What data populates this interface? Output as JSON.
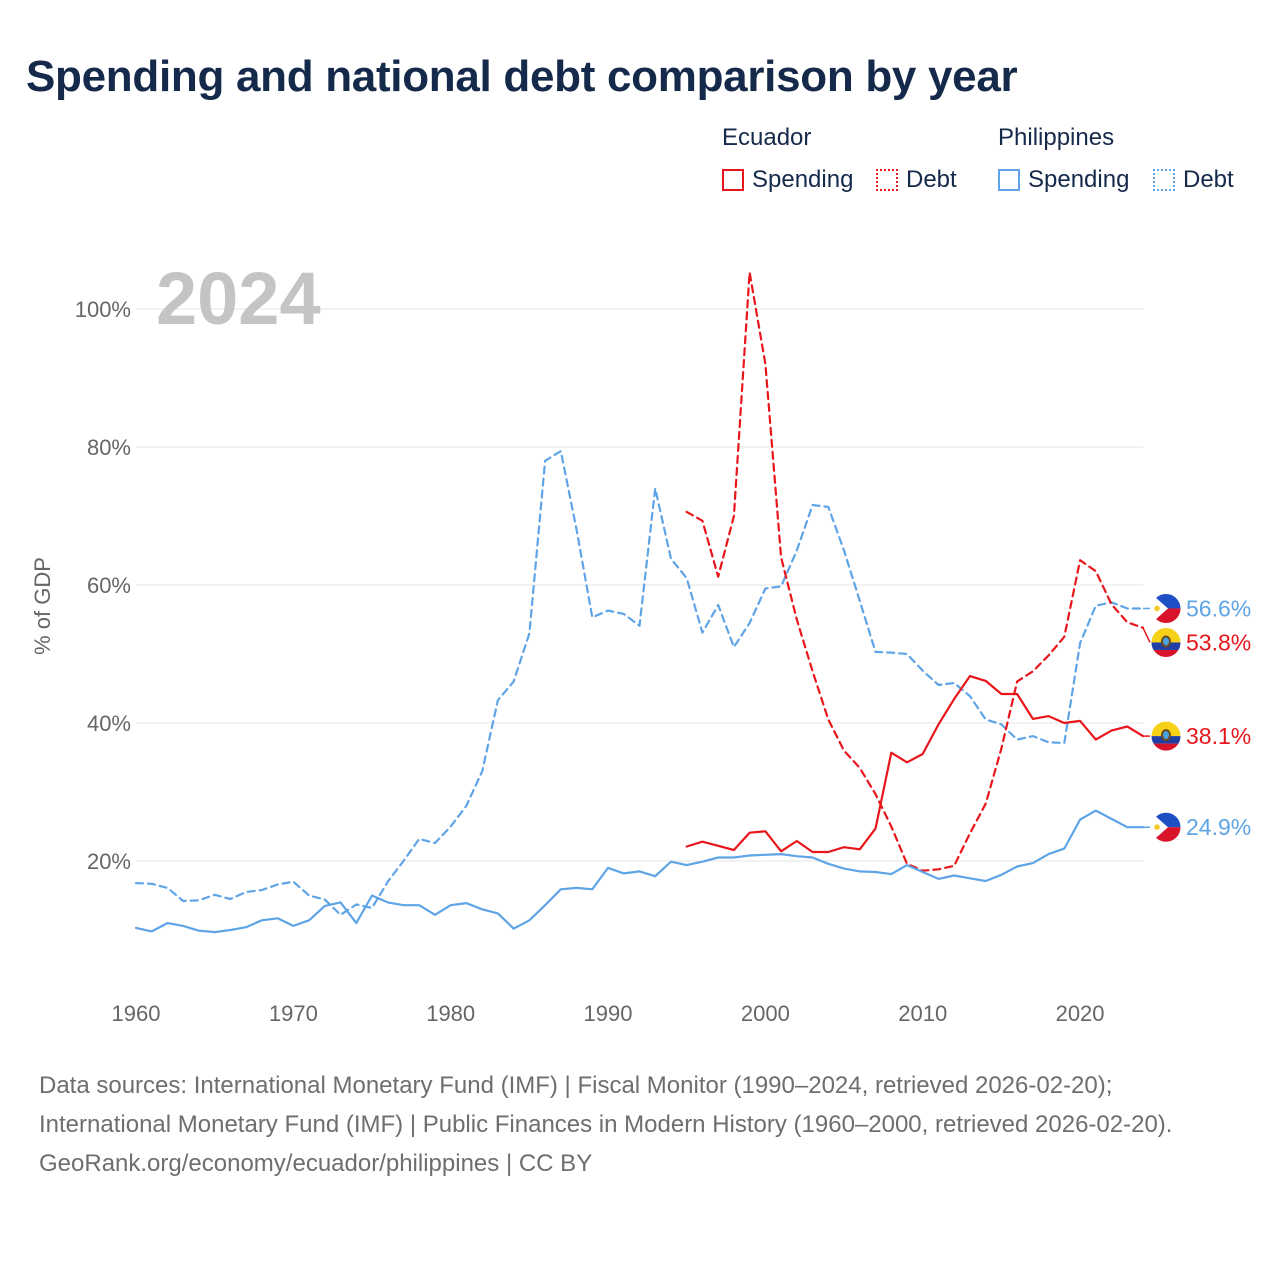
{
  "title": "Spending and national debt comparison by year",
  "legend": {
    "groups": [
      {
        "name": "Ecuador",
        "color": "#e8161b",
        "items": [
          {
            "label": "Spending",
            "style": "solid"
          },
          {
            "label": "Debt",
            "style": "dotted"
          }
        ]
      },
      {
        "name": "Philippines",
        "color": "#5ea4e6",
        "items": [
          {
            "label": "Spending",
            "style": "solid"
          },
          {
            "label": "Debt",
            "style": "dotted"
          }
        ]
      }
    ]
  },
  "chart_data": {
    "type": "line",
    "year_label": "2024",
    "ylabel": "% of GDP",
    "xlim": [
      1960,
      2025
    ],
    "ylim": [
      3,
      112
    ],
    "x_ticks": [
      1960,
      1970,
      1980,
      1990,
      2000,
      2010,
      2020
    ],
    "y_ticks": [
      {
        "value": 20,
        "label": "20%"
      },
      {
        "value": 40,
        "label": "40%"
      },
      {
        "value": 60,
        "label": "60%"
      },
      {
        "value": 80,
        "label": "80%"
      },
      {
        "value": 100,
        "label": "100%"
      }
    ],
    "series": [
      {
        "name": "Philippines Debt",
        "country": "Philippines",
        "metric": "Debt",
        "color": "#5ea4e6",
        "dash": "dashed",
        "end_label": "56.6%",
        "flag": "philippines",
        "x": [
          1960,
          1961,
          1962,
          1963,
          1964,
          1965,
          1966,
          1967,
          1968,
          1969,
          1970,
          1971,
          1972,
          1973,
          1974,
          1975,
          1976,
          1977,
          1978,
          1979,
          1980,
          1981,
          1982,
          1983,
          1984,
          1985,
          1986,
          1987,
          1988,
          1989,
          1990,
          1991,
          1992,
          1993,
          1994,
          1995,
          1996,
          1997,
          1998,
          1999,
          2000,
          2001,
          2002,
          2003,
          2004,
          2005,
          2006,
          2007,
          2008,
          2009,
          2010,
          2011,
          2012,
          2013,
          2014,
          2015,
          2016,
          2017,
          2018,
          2019,
          2020,
          2021,
          2022,
          2023,
          2024
        ],
        "y": [
          16.8,
          16.7,
          16.1,
          14.2,
          14.3,
          15.1,
          14.5,
          15.5,
          15.8,
          16.6,
          17.0,
          15.0,
          14.4,
          12.2,
          13.7,
          13.2,
          17.0,
          20.0,
          23.2,
          22.6,
          25.0,
          28.0,
          33.0,
          43.3,
          46.0,
          53.0,
          78.0,
          79.4,
          68.0,
          55.3,
          56.3,
          55.8,
          54.1,
          74.0,
          63.8,
          61.0,
          53.1,
          57.1,
          51.0,
          54.5,
          59.5,
          59.8,
          65.0,
          71.6,
          71.3,
          65.0,
          57.7,
          50.3,
          50.2,
          50.0,
          47.6,
          45.5,
          45.8,
          43.9,
          40.5,
          39.8,
          37.6,
          38.1,
          37.2,
          37.1,
          51.6,
          57.0,
          57.5,
          56.6,
          56.6
        ]
      },
      {
        "name": "Ecuador Debt",
        "country": "Ecuador",
        "metric": "Debt",
        "color": "#e8161b",
        "dash": "dashed",
        "end_label": "53.8%",
        "flag": "ecuador",
        "x": [
          1995,
          1996,
          1997,
          1998,
          1999,
          2000,
          2001,
          2002,
          2003,
          2004,
          2005,
          2006,
          2007,
          2008,
          2009,
          2010,
          2011,
          2012,
          2013,
          2014,
          2015,
          2016,
          2017,
          2018,
          2019,
          2020,
          2021,
          2022,
          2023,
          2024
        ],
        "y": [
          70.6,
          69.3,
          61.2,
          70.0,
          105.3,
          92.0,
          64.0,
          55.0,
          47.5,
          40.5,
          36.0,
          33.5,
          29.7,
          25.0,
          19.6,
          18.6,
          18.8,
          19.3,
          24.0,
          28.3,
          36.3,
          46.0,
          47.5,
          49.8,
          52.5,
          63.6,
          62.0,
          57.2,
          54.6,
          53.8
        ]
      },
      {
        "name": "Ecuador Spending",
        "country": "Ecuador",
        "metric": "Spending",
        "color": "#e8161b",
        "dash": "solid",
        "end_label": "38.1%",
        "flag": "ecuador",
        "x": [
          1995,
          1996,
          1997,
          1998,
          1999,
          2000,
          2001,
          2002,
          2003,
          2004,
          2005,
          2006,
          2007,
          2008,
          2009,
          2010,
          2011,
          2012,
          2013,
          2014,
          2015,
          2016,
          2017,
          2018,
          2019,
          2020,
          2021,
          2022,
          2023,
          2024
        ],
        "y": [
          22.1,
          22.8,
          22.2,
          21.6,
          24.1,
          24.3,
          21.4,
          22.9,
          21.3,
          21.3,
          22.0,
          21.7,
          24.7,
          35.7,
          34.3,
          35.5,
          39.8,
          43.5,
          46.8,
          46.1,
          44.2,
          44.2,
          40.6,
          41.0,
          40.0,
          40.3,
          37.6,
          38.9,
          39.5,
          38.1
        ]
      },
      {
        "name": "Philippines Spending",
        "country": "Philippines",
        "metric": "Spending",
        "color": "#5ea4e6",
        "dash": "solid",
        "end_label": "24.9%",
        "flag": "philippines",
        "x": [
          1960,
          1961,
          1962,
          1963,
          1964,
          1965,
          1966,
          1967,
          1968,
          1969,
          1970,
          1971,
          1972,
          1973,
          1974,
          1975,
          1976,
          1977,
          1978,
          1979,
          1980,
          1981,
          1982,
          1983,
          1984,
          1985,
          1986,
          1987,
          1988,
          1989,
          1990,
          1991,
          1992,
          1993,
          1994,
          1995,
          1996,
          1997,
          1998,
          1999,
          2000,
          2001,
          2002,
          2003,
          2004,
          2005,
          2006,
          2007,
          2008,
          2009,
          2010,
          2011,
          2012,
          2013,
          2014,
          2015,
          2016,
          2017,
          2018,
          2019,
          2020,
          2021,
          2022,
          2023,
          2024
        ],
        "y": [
          10.3,
          9.8,
          11.0,
          10.6,
          9.9,
          9.7,
          10.0,
          10.4,
          11.4,
          11.7,
          10.6,
          11.4,
          13.5,
          14.0,
          11.0,
          15.0,
          14.0,
          13.6,
          13.6,
          12.2,
          13.6,
          13.9,
          13.0,
          12.4,
          10.2,
          11.4,
          13.6,
          15.9,
          16.1,
          15.9,
          19.0,
          18.2,
          18.5,
          17.8,
          19.9,
          19.4,
          19.9,
          20.5,
          20.5,
          20.8,
          20.9,
          21.0,
          20.7,
          20.5,
          19.6,
          18.9,
          18.5,
          18.4,
          18.1,
          19.4,
          18.4,
          17.4,
          17.9,
          17.5,
          17.1,
          18.0,
          19.2,
          19.7,
          21.0,
          21.8,
          26.0,
          27.3,
          26.1,
          24.9,
          24.9
        ]
      }
    ]
  },
  "footer": {
    "sources": "Data sources: International Monetary Fund (IMF) | Fiscal Monitor (1990–2024, retrieved 2026-02-20); International Monetary Fund (IMF) | Public Finances in Modern History (1960–2000, retrieved 2026-02-20).",
    "attribution": "GeoRank.org/economy/ecuador/philippines | CC BY"
  }
}
